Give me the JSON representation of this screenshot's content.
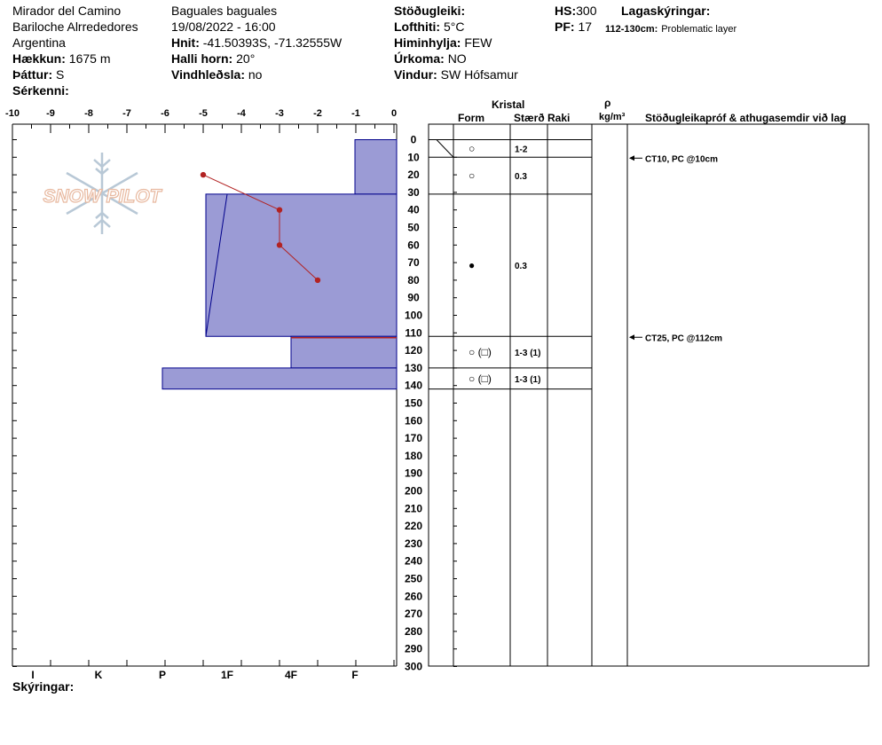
{
  "header": {
    "location": "Mirador del Camino",
    "region": "Bariloche Alrrededores",
    "country": "Argentina",
    "elevation_label": "Hækkun:",
    "elevation_value": "1675 m",
    "aspect_label": "Þáttur:",
    "aspect_value": "S",
    "features_label": "Sérkenni:",
    "observer": "Baguales baguales",
    "datetime": "19/08/2022 - 16:00",
    "coords_label": "Hnit:",
    "coords_value": "-41.50393S, -71.32555W",
    "slope_label": "Halli horn:",
    "slope_value": "20°",
    "wind_load_label": "Vindhleðsla:",
    "wind_load_value": "no",
    "stability_label": "Stöðugleiki:",
    "air_temp_label": "Lofthiti:",
    "air_temp_value": "5°C",
    "sky_label": "Himinhylja:",
    "sky_value": "FEW",
    "precip_label": "Úrkoma:",
    "precip_value": "NO",
    "wind_label": "Vindur:",
    "wind_value": "SW Hófsamur",
    "hs_label": "HS:",
    "hs_value": "300",
    "pf_label": "PF:",
    "pf_value": "17",
    "layer_notes_label": "Lagaskýringar:",
    "layer_note_range": "112-130cm:",
    "layer_note_text": "Problematic layer"
  },
  "footer": {
    "notes_label": "Skýringar:"
  },
  "logo": {
    "text": "SNOW PILOT",
    "icon": "snowflake-icon"
  },
  "table_headers": {
    "crystal": "Kristal",
    "form": "Form",
    "size": "Stærð",
    "moisture": "Raki",
    "rho": "ρ",
    "density_unit": "kg/m³",
    "comments": "Stöðugleikapróf & athugasemdir við lag"
  },
  "colors": {
    "hardness_fill": "#9b9bd5",
    "hardness_stroke": "#00008b",
    "temp_line": "#b22222"
  },
  "chart_data": {
    "type": "snow-profile",
    "temperature_axis": {
      "ticks": [
        "-10",
        "-9",
        "-8",
        "-7",
        "-6",
        "-5",
        "-4",
        "-3",
        "-2",
        "-1",
        "0"
      ],
      "range": [
        -10,
        0
      ]
    },
    "depth_axis": {
      "range": [
        0,
        300
      ],
      "step": 10,
      "unit": "cm"
    },
    "hardness_axis": {
      "labels": [
        "I",
        "K",
        "P",
        "1F",
        "4F",
        "F"
      ]
    },
    "hardness_layers": [
      {
        "top": 0,
        "bottom": 31,
        "hardness": "F"
      },
      {
        "top": 31,
        "bottom": 112,
        "hardness": "1F-"
      },
      {
        "top": 112,
        "bottom": 130,
        "hardness": "4F"
      },
      {
        "top": 130,
        "bottom": 142,
        "hardness": "P"
      }
    ],
    "temperature_profile": [
      {
        "depth": 20,
        "temp": -5.0
      },
      {
        "depth": 40,
        "temp": -3.0
      },
      {
        "depth": 60,
        "temp": -3.0
      },
      {
        "depth": 80,
        "temp": -2.0
      }
    ],
    "layers": [
      {
        "top": 0,
        "bottom": 10,
        "form_symbol": "○",
        "size": "1-2"
      },
      {
        "top": 10,
        "bottom": 31,
        "form_symbol": "○",
        "size": "0.3"
      },
      {
        "top": 31,
        "bottom": 112,
        "form_symbol": "●",
        "size": "0.3"
      },
      {
        "top": 112,
        "bottom": 130,
        "form_symbol": "○ (□)",
        "size": "1-3 (1)"
      },
      {
        "top": 130,
        "bottom": 142,
        "form_symbol": "○ (□)",
        "size": "1-3 (1)"
      }
    ],
    "tests": [
      {
        "depth": 10,
        "label": "CT10, PC @10cm"
      },
      {
        "depth": 112,
        "label": "CT25, PC @112cm"
      }
    ]
  }
}
